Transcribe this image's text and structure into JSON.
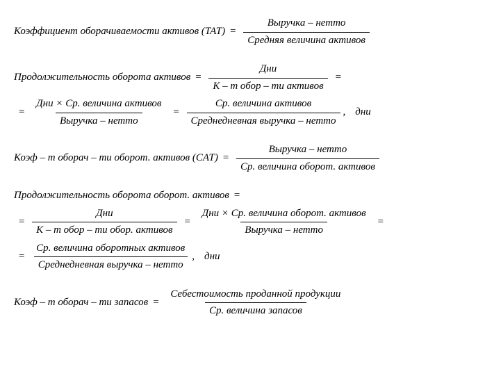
{
  "f1": {
    "lhs": "Коэффициент оборачиваемости активов (TAT)",
    "num": "Выручка – нетто",
    "den": "Средняя величина активов"
  },
  "f2": {
    "lhs": "Продолжительность оборота активов",
    "r1_num": "Дни",
    "r1_den": "К – т обор – ти активов",
    "r2a_num": "Дни × Ср. величина активов",
    "r2a_den": "Выручка – нетто",
    "r2b_num": "Ср. величина активов",
    "r2b_den": "Среднедневная выручка – нетто",
    "unit": "дни"
  },
  "f3": {
    "lhs": "Коэф – т оборач – ти оборот. активов (CAT)",
    "num": "Выручка – нетто",
    "den": "Ср. величина оборот. активов"
  },
  "f4": {
    "lhs": "Продолжительность оборота оборот. активов",
    "r1_num": "Дни",
    "r1_den": "К – т обор – ти обор. активов",
    "r1b_num": "Дни × Ср. величина оборот. активов",
    "r1b_den": "Выручка – нетто",
    "r2_num": "Ср. величина оборотных активов",
    "r2_den": "Среднедневная выручка – нетто",
    "unit": "дни"
  },
  "f5": {
    "lhs": "Коэф – т оборач – ти запасов",
    "num": "Себестоимость проданной продукции",
    "den": "Ср. величина запасов"
  },
  "sym": {
    "eq": "=",
    "comma": ","
  }
}
